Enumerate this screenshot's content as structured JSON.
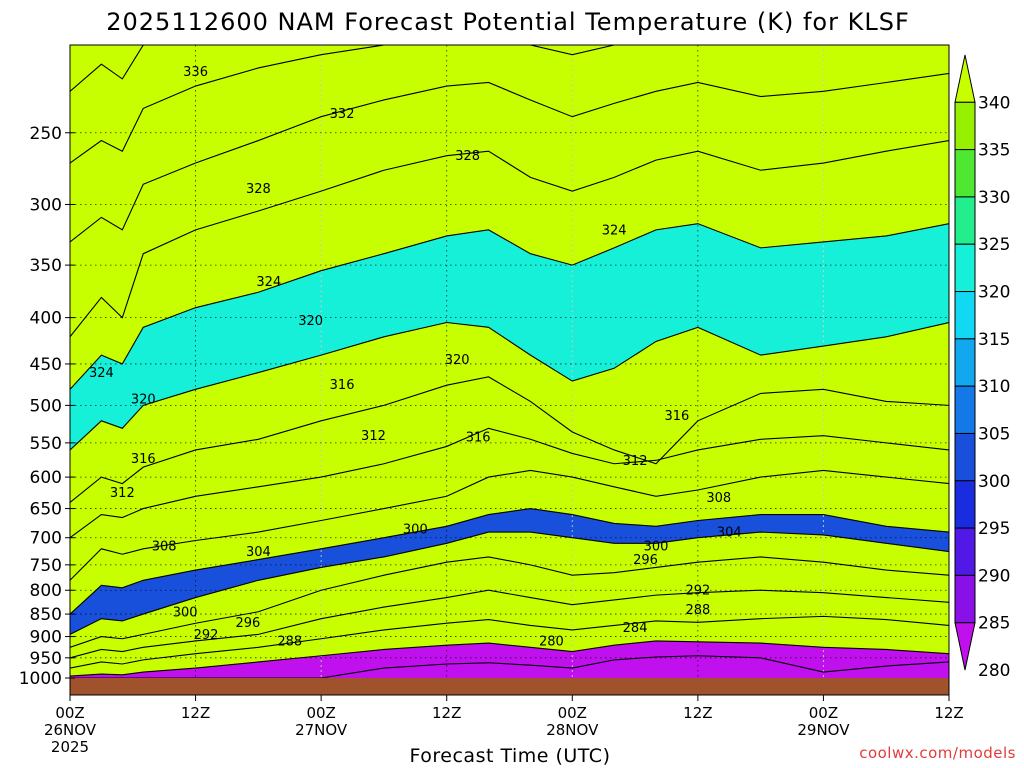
{
  "chart_data": {
    "type": "time-height contour",
    "title": "2025112600 NAM Forecast Potential Temperature (K) for KLSF",
    "xlabel": "Forecast Time (UTC)",
    "ylabel": "",
    "credit": "coolwx.com/models",
    "y_axis": {
      "scale": "log-pressure",
      "range": [
        1000,
        200
      ],
      "ticks": [
        250,
        300,
        350,
        400,
        450,
        500,
        550,
        600,
        650,
        700,
        750,
        800,
        850,
        900,
        950,
        1000
      ]
    },
    "x_axis": {
      "range_hours": [
        0,
        84
      ],
      "ticks": [
        {
          "h": 0,
          "label": "00Z",
          "date": "26NOV",
          "year": "2025"
        },
        {
          "h": 12,
          "label": "12Z",
          "date": "",
          "year": ""
        },
        {
          "h": 24,
          "label": "00Z",
          "date": "27NOV",
          "year": ""
        },
        {
          "h": 36,
          "label": "12Z",
          "date": "",
          "year": ""
        },
        {
          "h": 48,
          "label": "00Z",
          "date": "28NOV",
          "year": ""
        },
        {
          "h": 60,
          "label": "12Z",
          "date": "",
          "year": ""
        },
        {
          "h": 72,
          "label": "00Z",
          "date": "29NOV",
          "year": ""
        },
        {
          "h": 84,
          "label": "12Z",
          "date": "",
          "year": ""
        }
      ]
    },
    "colorbar": {
      "labels": [
        "340",
        "335",
        "330",
        "325",
        "320",
        "315",
        "310",
        "305",
        "300",
        "295",
        "290",
        "285",
        "280"
      ],
      "bands": [
        {
          "lo": 340,
          "hi": 345,
          "color": "#c8ff00"
        },
        {
          "lo": 335,
          "hi": 340,
          "color": "#96f000"
        },
        {
          "lo": 330,
          "hi": 335,
          "color": "#4ee832"
        },
        {
          "lo": 325,
          "hi": 330,
          "color": "#22ee8e"
        },
        {
          "lo": 320,
          "hi": 325,
          "color": "#16f0d8"
        },
        {
          "lo": 315,
          "hi": 320,
          "color": "#12d8f4"
        },
        {
          "lo": 310,
          "hi": 315,
          "color": "#12a8f0"
        },
        {
          "lo": 305,
          "hi": 310,
          "color": "#1478e8"
        },
        {
          "lo": 300,
          "hi": 305,
          "color": "#1850dc"
        },
        {
          "lo": 295,
          "hi": 300,
          "color": "#1a2ce0"
        },
        {
          "lo": 290,
          "hi": 295,
          "color": "#5218e8"
        },
        {
          "lo": 285,
          "hi": 290,
          "color": "#8a10e8"
        },
        {
          "lo": 280,
          "hi": 285,
          "color": "#c010ee"
        }
      ],
      "floor_color": "#a0522d"
    },
    "isentropes_pressure_hPa": {
      "hours": [
        0,
        3,
        5,
        7,
        12,
        18,
        24,
        30,
        36,
        40,
        44,
        48,
        52,
        56,
        60,
        66,
        72,
        78,
        84
      ],
      "levels": [
        {
          "theta": 280,
          "p": [
            1000,
            1000,
            1000,
            1000,
            1000,
            1000,
            1000,
            975,
            965,
            962,
            968,
            975,
            955,
            948,
            945,
            950,
            985,
            970,
            960
          ]
        },
        {
          "theta": 284,
          "p": [
            995,
            990,
            992,
            985,
            975,
            960,
            945,
            930,
            920,
            915,
            925,
            935,
            920,
            910,
            912,
            915,
            925,
            930,
            940
          ]
        },
        {
          "theta": 288,
          "p": [
            975,
            960,
            965,
            955,
            940,
            925,
            905,
            885,
            870,
            862,
            875,
            885,
            875,
            865,
            868,
            860,
            855,
            862,
            875
          ]
        },
        {
          "theta": 292,
          "p": [
            950,
            930,
            935,
            925,
            910,
            895,
            860,
            835,
            815,
            800,
            815,
            830,
            820,
            810,
            805,
            800,
            805,
            815,
            825
          ]
        },
        {
          "theta": 296,
          "p": [
            925,
            900,
            905,
            895,
            870,
            845,
            800,
            770,
            745,
            735,
            750,
            770,
            765,
            755,
            745,
            735,
            745,
            760,
            770
          ]
        },
        {
          "theta": 300,
          "p": [
            895,
            860,
            865,
            850,
            815,
            780,
            755,
            735,
            710,
            690,
            690,
            700,
            710,
            710,
            700,
            690,
            695,
            710,
            725
          ]
        },
        {
          "theta": 304,
          "p": [
            850,
            790,
            795,
            780,
            760,
            740,
            720,
            700,
            680,
            660,
            650,
            660,
            675,
            680,
            670,
            660,
            660,
            680,
            690
          ]
        },
        {
          "theta": 308,
          "p": [
            780,
            720,
            730,
            720,
            705,
            690,
            670,
            650,
            630,
            600,
            590,
            600,
            615,
            630,
            620,
            600,
            590,
            600,
            610
          ]
        },
        {
          "theta": 312,
          "p": [
            700,
            660,
            665,
            650,
            630,
            615,
            600,
            580,
            555,
            530,
            545,
            565,
            580,
            575,
            560,
            545,
            540,
            550,
            560
          ]
        },
        {
          "theta": 316,
          "p": [
            640,
            600,
            610,
            585,
            560,
            545,
            520,
            500,
            475,
            465,
            495,
            535,
            560,
            580,
            520,
            485,
            480,
            495,
            500
          ]
        },
        {
          "theta": 320,
          "p": [
            560,
            520,
            530,
            500,
            480,
            460,
            440,
            420,
            405,
            410,
            440,
            470,
            455,
            425,
            410,
            440,
            430,
            420,
            405
          ]
        },
        {
          "theta": 324,
          "p": [
            480,
            440,
            450,
            410,
            390,
            375,
            355,
            340,
            325,
            320,
            340,
            350,
            335,
            320,
            315,
            335,
            330,
            325,
            315
          ]
        },
        {
          "theta": 328,
          "p": [
            420,
            380,
            400,
            340,
            320,
            305,
            290,
            275,
            265,
            262,
            280,
            290,
            280,
            268,
            262,
            275,
            270,
            262,
            255
          ]
        },
        {
          "theta": 332,
          "p": [
            330,
            310,
            320,
            285,
            270,
            255,
            240,
            230,
            222,
            220,
            230,
            240,
            232,
            225,
            220,
            228,
            225,
            220,
            215
          ]
        },
        {
          "theta": 336,
          "p": [
            270,
            255,
            262,
            235,
            222,
            212,
            205,
            200,
            198,
            197,
            200,
            205,
            200,
            198,
            197,
            199,
            199,
            197,
            195
          ]
        },
        {
          "theta": 340,
          "p": [
            225,
            210,
            218,
            200,
            195,
            193,
            193,
            195,
            196,
            197,
            198,
            200,
            196,
            194,
            193,
            194,
            194,
            193,
            192
          ]
        }
      ]
    },
    "contour_labels": [
      {
        "text": "336",
        "h": 12,
        "p": 214
      },
      {
        "text": "332",
        "h": 26,
        "p": 238
      },
      {
        "text": "328",
        "h": 38,
        "p": 265
      },
      {
        "text": "328",
        "h": 18,
        "p": 288
      },
      {
        "text": "324",
        "h": 52,
        "p": 320
      },
      {
        "text": "324",
        "h": 19,
        "p": 365
      },
      {
        "text": "320",
        "h": 23,
        "p": 403
      },
      {
        "text": "320",
        "h": 37,
        "p": 445
      },
      {
        "text": "324",
        "h": 3,
        "p": 460
      },
      {
        "text": "320",
        "h": 7,
        "p": 492
      },
      {
        "text": "316",
        "h": 26,
        "p": 474
      },
      {
        "text": "316",
        "h": 7,
        "p": 572
      },
      {
        "text": "316",
        "h": 39,
        "p": 542
      },
      {
        "text": "316",
        "h": 58,
        "p": 513
      },
      {
        "text": "312",
        "h": 29,
        "p": 540
      },
      {
        "text": "312",
        "h": 54,
        "p": 575
      },
      {
        "text": "312",
        "h": 5,
        "p": 624
      },
      {
        "text": "308",
        "h": 9,
        "p": 715
      },
      {
        "text": "308",
        "h": 62,
        "p": 632
      },
      {
        "text": "304",
        "h": 18,
        "p": 725
      },
      {
        "text": "304",
        "h": 63,
        "p": 690
      },
      {
        "text": "300",
        "h": 33,
        "p": 685
      },
      {
        "text": "300",
        "h": 56,
        "p": 715
      },
      {
        "text": "300",
        "h": 11,
        "p": 845
      },
      {
        "text": "296",
        "h": 55,
        "p": 740
      },
      {
        "text": "296",
        "h": 17,
        "p": 868
      },
      {
        "text": "292",
        "h": 60,
        "p": 800
      },
      {
        "text": "292",
        "h": 13,
        "p": 895
      },
      {
        "text": "288",
        "h": 60,
        "p": 840
      },
      {
        "text": "288",
        "h": 21,
        "p": 910
      },
      {
        "text": "284",
        "h": 54,
        "p": 880
      },
      {
        "text": "280",
        "h": 46,
        "p": 910
      }
    ]
  }
}
